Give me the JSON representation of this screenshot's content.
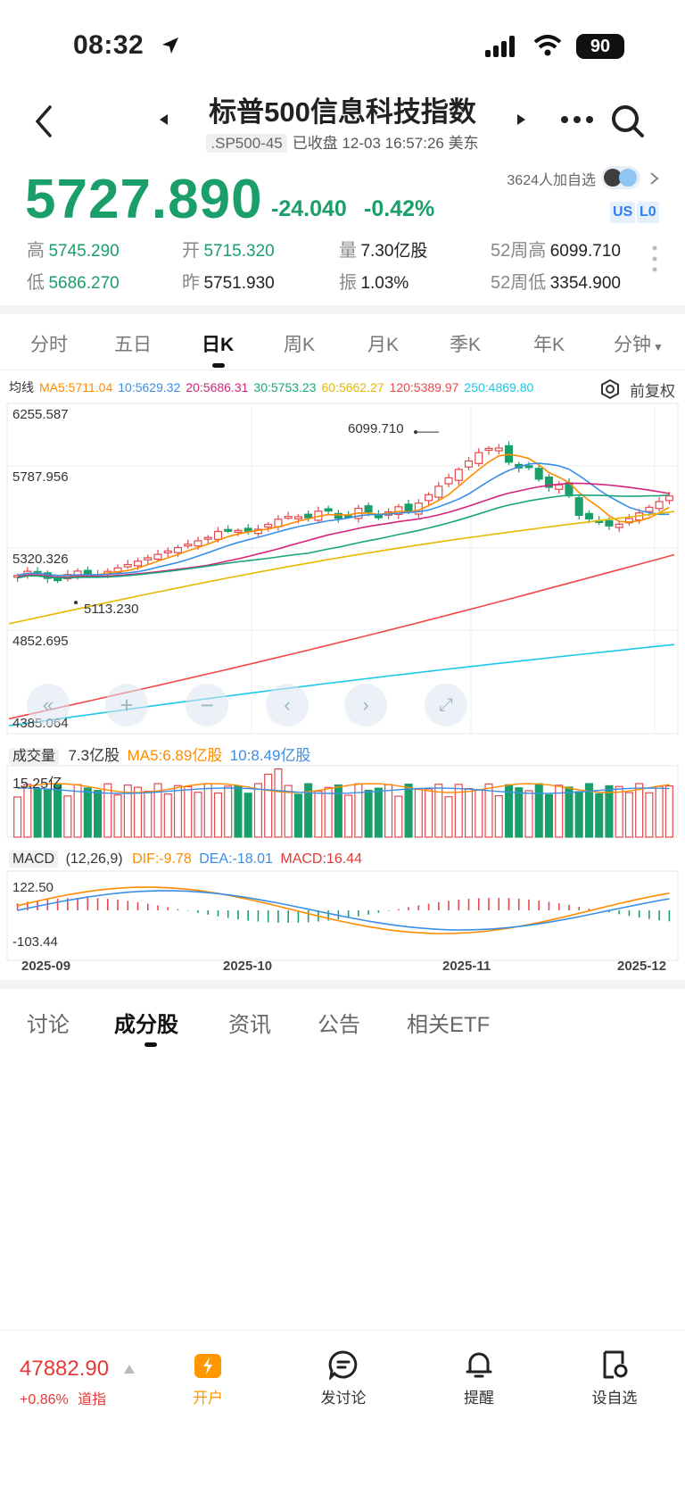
{
  "status": {
    "time": "08:32",
    "battery": "90"
  },
  "header": {
    "title": "标普500信息科技指数",
    "code": ".SP500-45",
    "status": "已收盘 12-03 16:57:26 美东"
  },
  "quote": {
    "price": "5727.890",
    "change": "-24.040",
    "change_pct": "-0.42%",
    "followers": "3624人加自选",
    "tags": [
      "US",
      "L0"
    ],
    "stats": [
      {
        "k": "高",
        "v": "5745.290"
      },
      {
        "k": "开",
        "v": "5715.320"
      },
      {
        "k": "量",
        "v": "7.30亿股"
      },
      {
        "k": "52周高",
        "v": "6099.710"
      },
      {
        "k": "低",
        "v": "5686.270"
      },
      {
        "k": "昨",
        "v": "5751.930"
      },
      {
        "k": "振",
        "v": "1.03%"
      },
      {
        "k": "52周低",
        "v": "3354.900"
      }
    ]
  },
  "period_tabs": [
    "分时",
    "五日",
    "日K",
    "周K",
    "月K",
    "季K",
    "年K",
    "分钟"
  ],
  "active_period": "日K",
  "ma": {
    "title": "均线",
    "items": [
      {
        "label": "MA5:5711.04",
        "color": "#ff8c00"
      },
      {
        "label": "10:5629.32",
        "color": "#3a8ee6"
      },
      {
        "label": "20:5686.31",
        "color": "#d4237a"
      },
      {
        "label": "30:5753.23",
        "color": "#1aa67a"
      },
      {
        "label": "60:5662.27",
        "color": "#e6b800"
      },
      {
        "label": "120:5389.97",
        "color": "#f04848"
      },
      {
        "label": "250:4869.80",
        "color": "#1cc8e8"
      }
    ],
    "adjust": "前复权"
  },
  "chart_data": {
    "type": "candlestick",
    "y_ticks": [
      "6255.587",
      "5787.956",
      "5320.326",
      "4852.695",
      "4385.064"
    ],
    "ylim": [
      4385.064,
      6255.587
    ],
    "high_marker": "6099.710",
    "low_marker": "5113.230",
    "x_ticks": [
      "2025-09",
      "2025-10",
      "2025-11",
      "2025-12"
    ],
    "volume": {
      "title": "成交量",
      "current": "7.3亿股",
      "ma5": "MA5:6.89亿股",
      "ma10": "10:8.49亿股",
      "max_label": "15.25亿"
    },
    "macd": {
      "title": "MACD",
      "params": "(12,26,9)",
      "dif": "DIF:-9.78",
      "dea": "DEA:-18.01",
      "macd": "MACD:16.44",
      "top": "122.50",
      "bottom": "-103.44"
    }
  },
  "detail_tabs": [
    "讨论",
    "成分股",
    "资讯",
    "公告",
    "相关ETF"
  ],
  "active_detail": "成分股",
  "bottom": {
    "index_value": "47882.90",
    "index_change": "+0.86%",
    "index_name": "道指",
    "nav": [
      "开户",
      "发讨论",
      "提醒",
      "设自选"
    ]
  }
}
